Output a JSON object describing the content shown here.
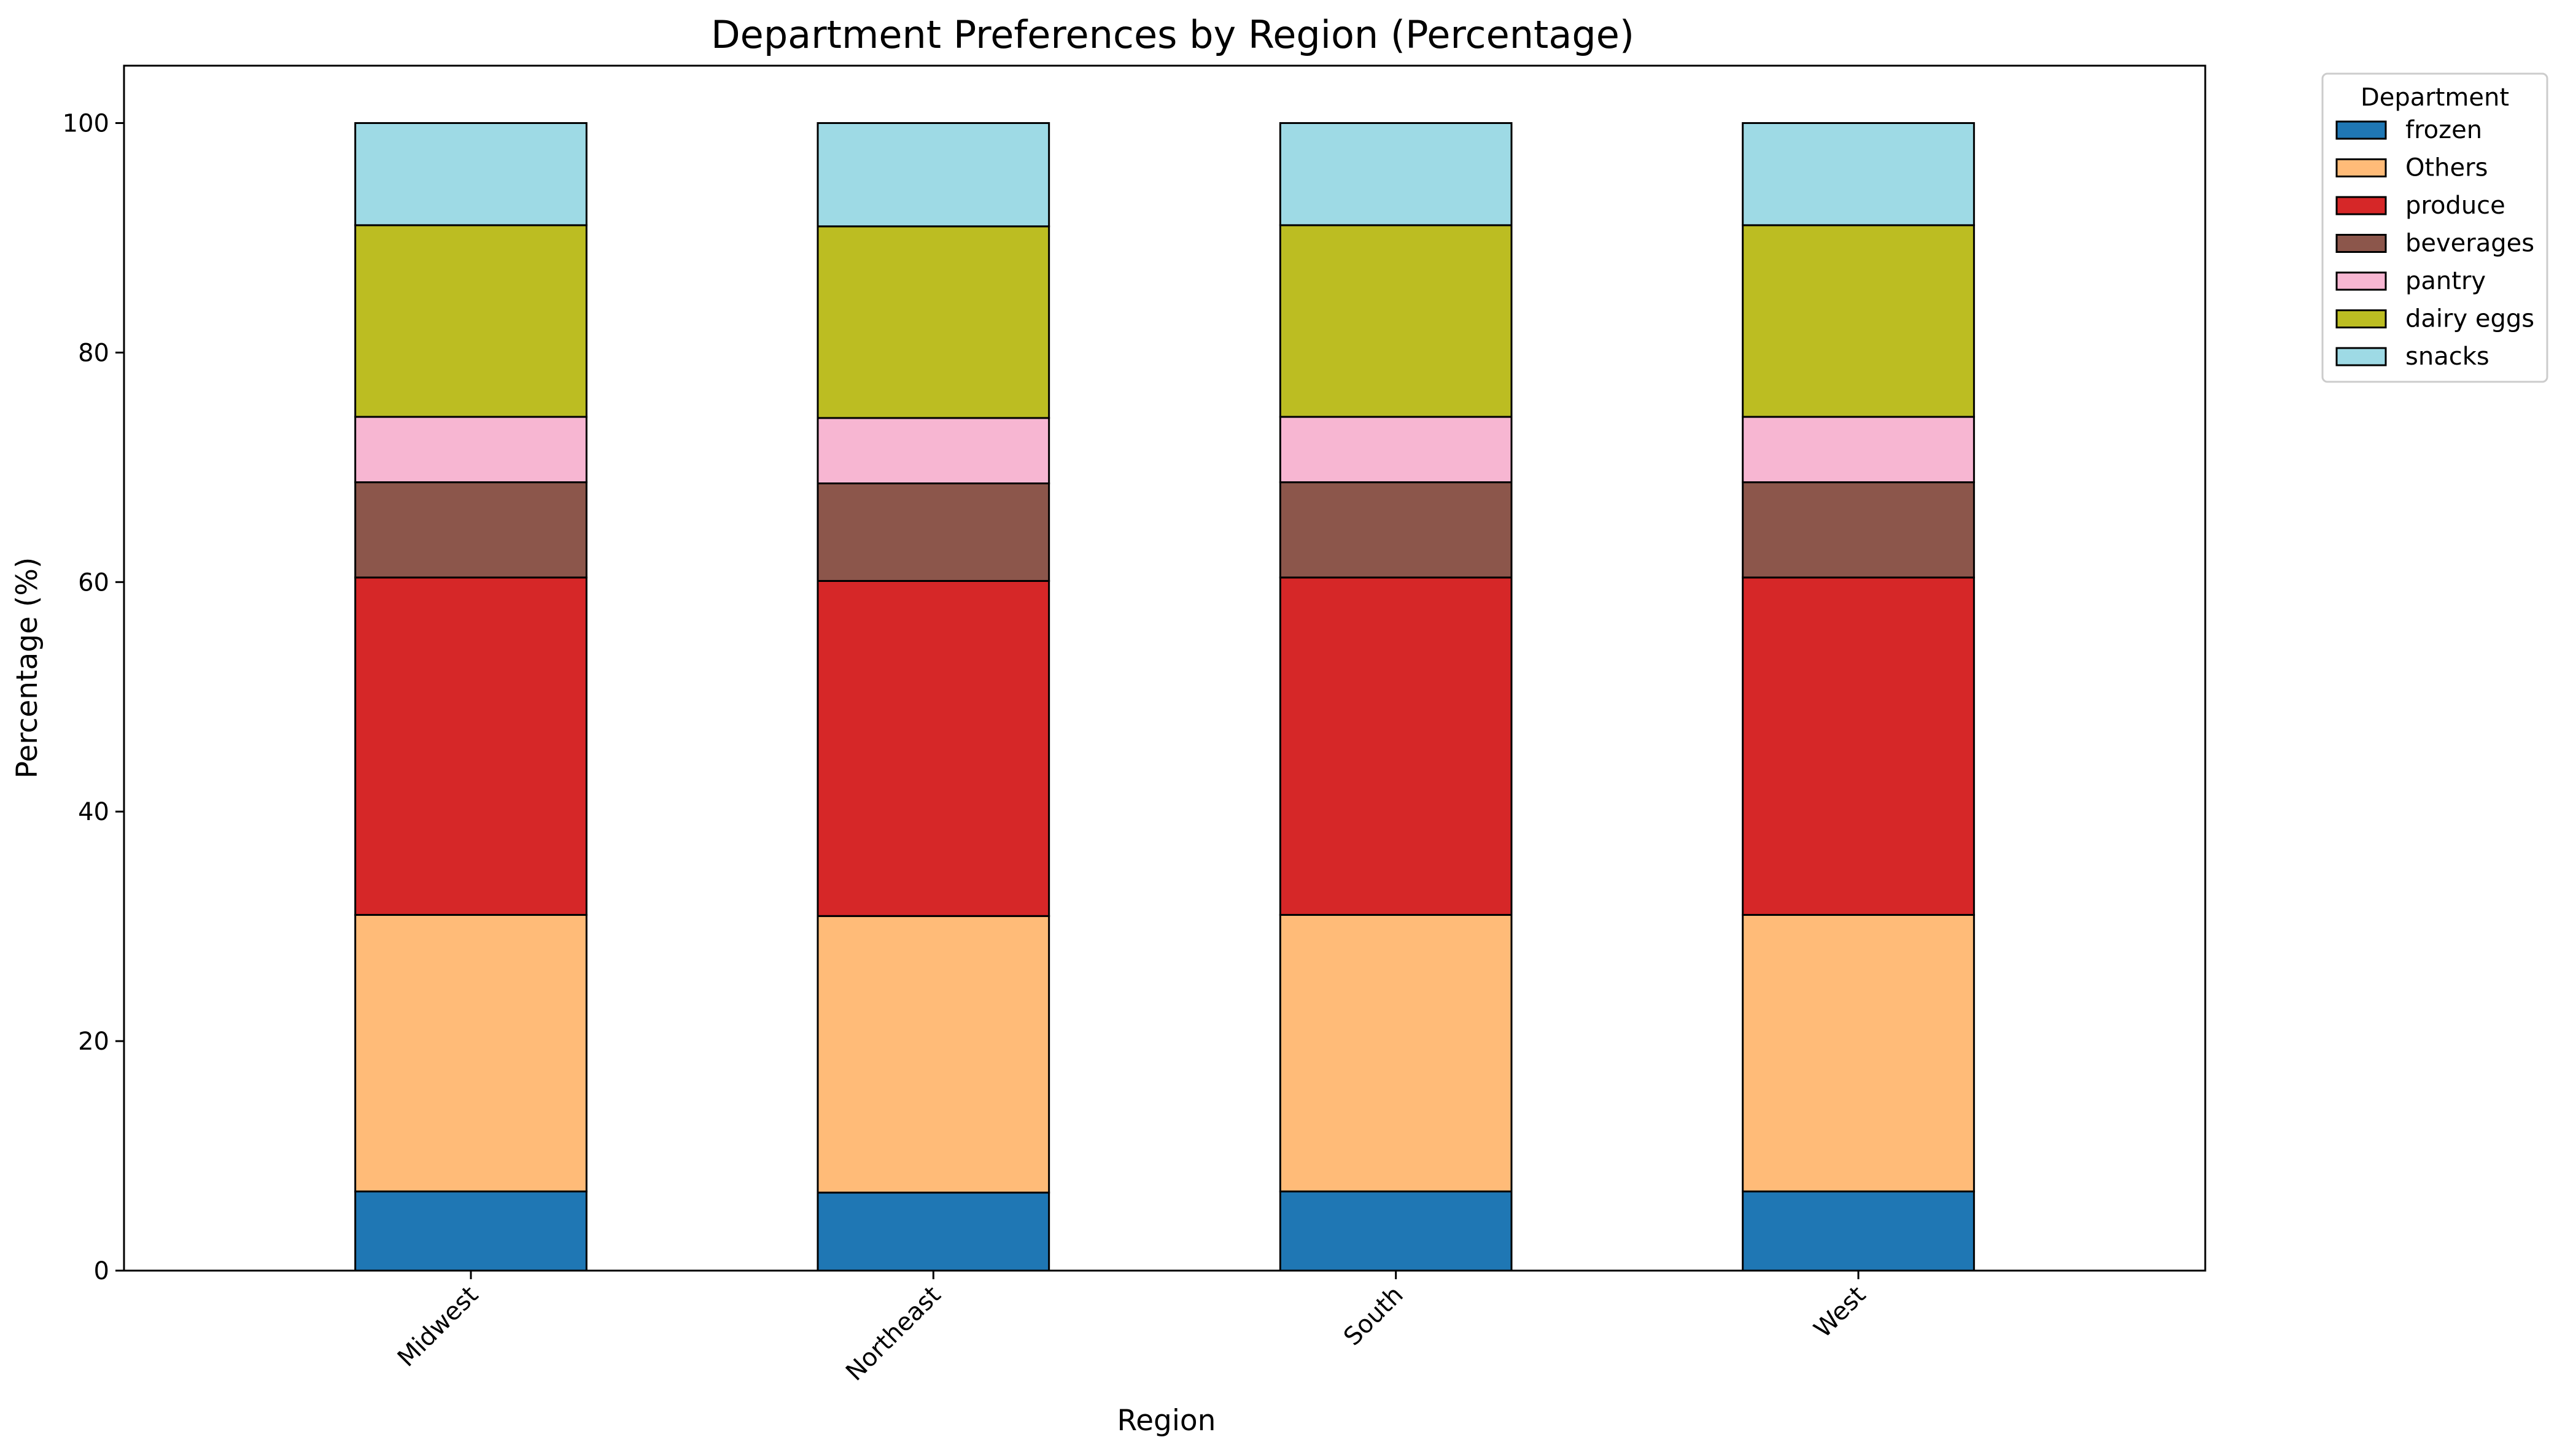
{
  "chart_data": {
    "type": "bar",
    "stacked": true,
    "title": "Department Preferences by Region (Percentage)",
    "xlabel": "Region",
    "ylabel": "Percentage (%)",
    "ylim": [
      0,
      105
    ],
    "yticks": [
      0,
      20,
      40,
      60,
      80,
      100
    ],
    "categories": [
      "Midwest",
      "Northeast",
      "South",
      "West"
    ],
    "legend": {
      "title": "Department",
      "placement": "outside-top-right"
    },
    "grid": false,
    "series": [
      {
        "name": "frozen",
        "color": "#1f77b4",
        "values": [
          6.9,
          6.8,
          6.9,
          6.9
        ]
      },
      {
        "name": "Others",
        "color": "#ffbb78",
        "values": [
          24.1,
          24.1,
          24.1,
          24.1
        ]
      },
      {
        "name": "produce",
        "color": "#d62728",
        "values": [
          29.4,
          29.2,
          29.4,
          29.4
        ]
      },
      {
        "name": "beverages",
        "color": "#8c564b",
        "values": [
          8.3,
          8.5,
          8.3,
          8.3
        ]
      },
      {
        "name": "pantry",
        "color": "#f7b6d2",
        "values": [
          5.7,
          5.7,
          5.7,
          5.7
        ]
      },
      {
        "name": "dairy eggs",
        "color": "#bcbd22",
        "values": [
          16.7,
          16.7,
          16.7,
          16.7
        ]
      },
      {
        "name": "snacks",
        "color": "#9edae5",
        "values": [
          8.9,
          9.0,
          8.9,
          8.9
        ]
      }
    ]
  }
}
